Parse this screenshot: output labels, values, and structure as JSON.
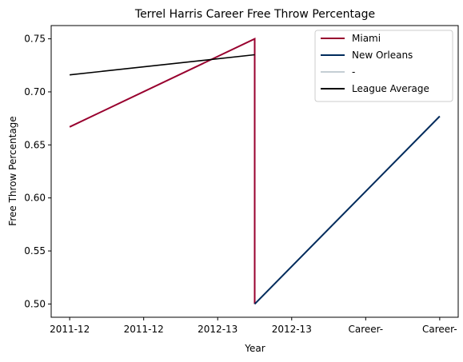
{
  "chart_data": {
    "type": "line",
    "title": "Terrel Harris Career Free Throw Percentage",
    "xlabel": "Year",
    "ylabel": "Free Throw Percentage",
    "x_tick_labels": [
      "2011-12",
      "2011-12",
      "2012-13",
      "2012-13",
      "Career-",
      "Career-"
    ],
    "xlim": [
      -0.25,
      5.25
    ],
    "ylim": [
      0.4875,
      0.7625
    ],
    "y_ticks": [
      0.5,
      0.55,
      0.6,
      0.65,
      0.7,
      0.75
    ],
    "y_tick_labels": [
      "0.50",
      "0.55",
      "0.60",
      "0.65",
      "0.70",
      "0.75"
    ],
    "grid": false,
    "legend_position": "top-right",
    "series": [
      {
        "name": "Miami",
        "color": "#98002E",
        "points": [
          [
            0,
            0.667
          ],
          [
            2.5,
            0.75
          ],
          [
            2.5,
            0.5
          ]
        ]
      },
      {
        "name": "New Orleans",
        "color": "#002B5C",
        "points": [
          [
            2.5,
            0.5
          ],
          [
            5,
            0.677
          ]
        ]
      },
      {
        "name": "-",
        "color": "#C4CED4",
        "points": []
      },
      {
        "name": "League Average",
        "color": "#000000",
        "points": [
          [
            0,
            0.716
          ],
          [
            2.5,
            0.735
          ]
        ]
      }
    ]
  }
}
